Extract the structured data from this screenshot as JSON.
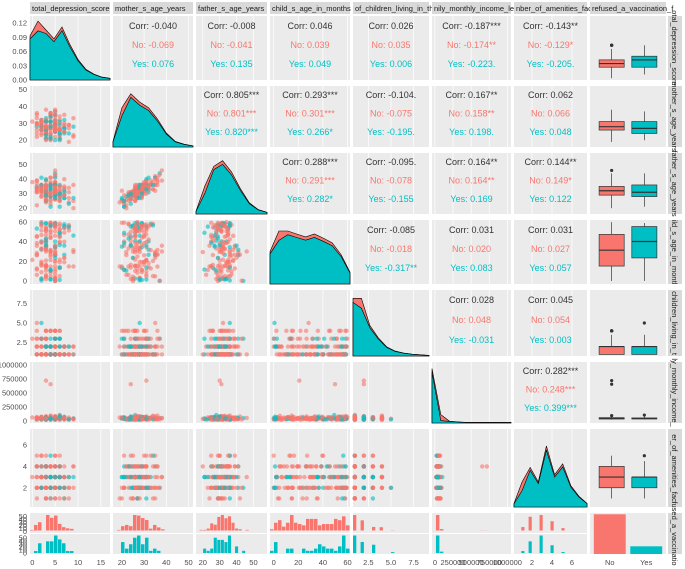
{
  "chart_data": {
    "type": "scatter",
    "variables": [
      "total_depression_score",
      "mother_s_age_years",
      "father_s_age_years",
      "child_s_age_in_months",
      "number_of_children_living_in_the_house",
      "family_monthly_income_level",
      "number_of_amenities_facilities",
      "refused_a_vaccination_f"
    ],
    "strip_labels": [
      "total_depression_score",
      "mother_s_age_years",
      "father_s_age_years",
      "child_s_age_in_months",
      "of_children_living_in_the",
      "nily_monthly_income_le",
      "nber_of_amenities_facili",
      "refused_a_vaccination_f"
    ],
    "row_strip_labels": [
      "otal_depression_score",
      "mother_s_age_years",
      "father_s_age_years",
      "ild_s_age_in_montl",
      "children_living_in_t",
      "ly_monthly_income_",
      "er_of_amenities_fac",
      "fused_a_vaccinatio"
    ],
    "groups": [
      {
        "name": "No",
        "color": "#F8766D"
      },
      {
        "name": "Yes",
        "color": "#00BFC4"
      }
    ],
    "correlations": [
      {
        "row": 0,
        "col": 1,
        "corr": "Corr: -0.040",
        "no": "No: -0.069",
        "yes": "Yes: 0.076"
      },
      {
        "row": 0,
        "col": 2,
        "corr": "Corr: -0.008",
        "no": "No: -0.041",
        "yes": "Yes: 0.135"
      },
      {
        "row": 0,
        "col": 3,
        "corr": "Corr: 0.046",
        "no": "No: 0.039",
        "yes": "Yes: 0.049"
      },
      {
        "row": 0,
        "col": 4,
        "corr": "Corr: 0.026",
        "no": "No: 0.035",
        "yes": "Yes: 0.006"
      },
      {
        "row": 0,
        "col": 5,
        "corr": "Corr: -0.187***",
        "no": "No: -0.174**",
        "yes": "Yes: -0.223."
      },
      {
        "row": 0,
        "col": 6,
        "corr": "Corr: -0.143**",
        "no": "No: -0.129*",
        "yes": "Yes: -0.205."
      },
      {
        "row": 1,
        "col": 2,
        "corr": "Corr: 0.805***",
        "no": "No: 0.801***",
        "yes": "Yes: 0.820***"
      },
      {
        "row": 1,
        "col": 3,
        "corr": "Corr: 0.293***",
        "no": "No: 0.301***",
        "yes": "Yes: 0.266*"
      },
      {
        "row": 1,
        "col": 4,
        "corr": "Corr: -0.104.",
        "no": "No: -0.075",
        "yes": "Yes: -0.195."
      },
      {
        "row": 1,
        "col": 5,
        "corr": "Corr: 0.167**",
        "no": "No: 0.158**",
        "yes": "Yes: 0.198."
      },
      {
        "row": 1,
        "col": 6,
        "corr": "Corr: 0.062",
        "no": "No: 0.066",
        "yes": "Yes: 0.048"
      },
      {
        "row": 2,
        "col": 3,
        "corr": "Corr: 0.288***",
        "no": "No: 0.291***",
        "yes": "Yes: 0.282*"
      },
      {
        "row": 2,
        "col": 4,
        "corr": "Corr: -0.095.",
        "no": "No: -0.078",
        "yes": "Yes: -0.155"
      },
      {
        "row": 2,
        "col": 5,
        "corr": "Corr: 0.164**",
        "no": "No: 0.164**",
        "yes": "Yes: 0.169"
      },
      {
        "row": 2,
        "col": 6,
        "corr": "Corr: 0.144**",
        "no": "No: 0.149*",
        "yes": "Yes: 0.122"
      },
      {
        "row": 3,
        "col": 4,
        "corr": "Corr: -0.085",
        "no": "No: -0.018",
        "yes": "Yes: -0.317**"
      },
      {
        "row": 3,
        "col": 5,
        "corr": "Corr: 0.031",
        "no": "No: 0.020",
        "yes": "Yes: 0.083"
      },
      {
        "row": 3,
        "col": 6,
        "corr": "Corr: 0.031",
        "no": "No: 0.027",
        "yes": "Yes: 0.057"
      },
      {
        "row": 4,
        "col": 5,
        "corr": "Corr: 0.028",
        "no": "No: 0.048",
        "yes": "Yes: -0.031"
      },
      {
        "row": 4,
        "col": 6,
        "corr": "Corr: 0.045",
        "no": "No: 0.054",
        "yes": "Yes: 0.003"
      },
      {
        "row": 5,
        "col": 6,
        "corr": "Corr: 0.282***",
        "no": "No: 0.248***",
        "yes": "Yes: 0.399***"
      }
    ],
    "x_ticks": [
      [
        "0",
        "5",
        "10",
        "15"
      ],
      [
        "20",
        "30",
        "40",
        "50"
      ],
      [
        "20",
        "30",
        "40",
        "50"
      ],
      [
        "0",
        "20",
        "40",
        "60"
      ],
      [
        "2.5",
        "5.0",
        "7.5"
      ],
      [
        "0",
        "250000",
        "500000",
        "750000",
        "1000000"
      ],
      [
        "2",
        "4",
        "6"
      ],
      [
        "No",
        "Yes"
      ]
    ],
    "y_ticks": [
      [
        "0.00",
        "0.03",
        "0.06",
        "0.09",
        "0.12"
      ],
      [
        "20",
        "30",
        "40",
        "50"
      ],
      [
        "20",
        "30",
        "40",
        "50"
      ],
      [
        "0",
        "20",
        "40",
        "60"
      ],
      [
        "2.5",
        "5.0",
        "7.5"
      ],
      [
        "0",
        "250000",
        "500000",
        "750000",
        "1000000"
      ],
      [
        "2",
        "4",
        "6"
      ],
      [
        "0",
        "10",
        "20",
        "30",
        "40",
        "50",
        "0",
        "10",
        "20",
        "30",
        "40",
        "50"
      ]
    ],
    "ranges": [
      [
        -0.5,
        17
      ],
      [
        16,
        52
      ],
      [
        16,
        58
      ],
      [
        -3,
        62
      ],
      [
        0.8,
        9.2
      ],
      [
        -40000,
        1050000
      ],
      [
        0.2,
        7.5
      ]
    ],
    "bar_counts": {
      "No": 310,
      "Yes": 60
    },
    "grid": true,
    "legend": "none"
  }
}
